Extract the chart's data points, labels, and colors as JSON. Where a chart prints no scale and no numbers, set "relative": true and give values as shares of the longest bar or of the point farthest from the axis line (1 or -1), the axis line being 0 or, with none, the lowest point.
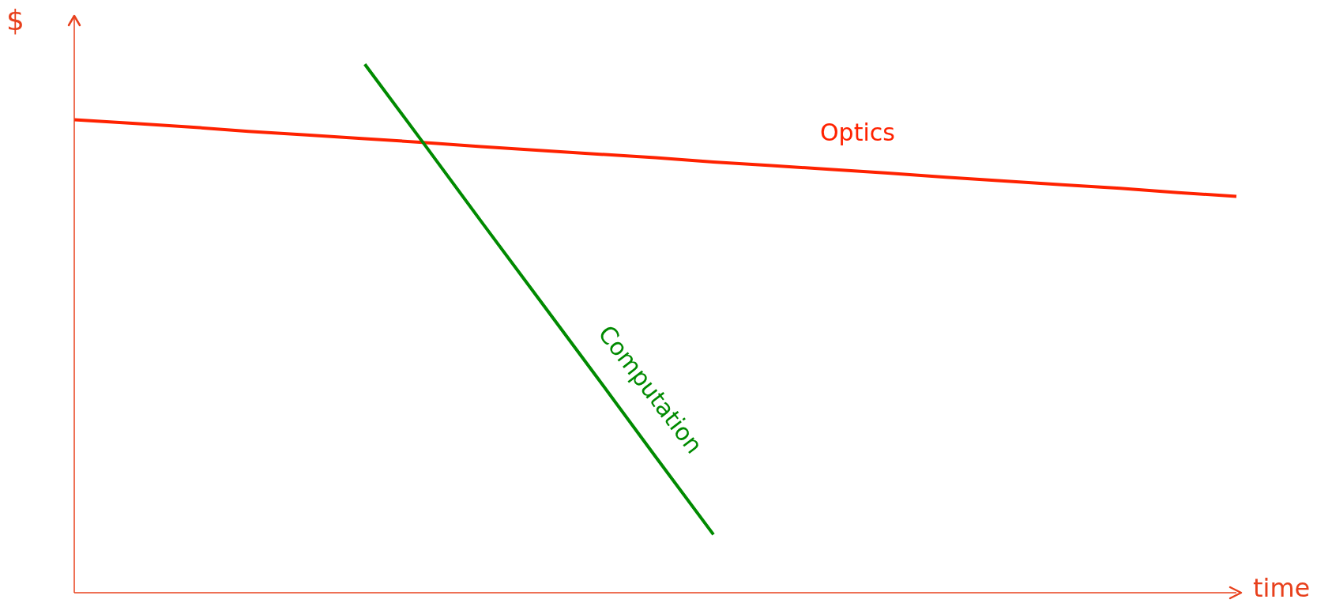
{
  "chart_data": {
    "type": "line",
    "relative": true,
    "xlabel": "time",
    "ylabel": "$",
    "marker": "none",
    "line_style": "solid",
    "categories": [
      null,
      null,
      null,
      null,
      null,
      null,
      null,
      null,
      null,
      null,
      null,
      null,
      null,
      null,
      null,
      null,
      null,
      null,
      null,
      null,
      null
    ],
    "series": [
      {
        "name": "Optics",
        "color": "#ff2200",
        "values": [
          0.895,
          0.888,
          0.881,
          0.873,
          0.866,
          0.859,
          0.852,
          0.844,
          0.837,
          0.83,
          0.823,
          0.815,
          0.808,
          0.801,
          0.794,
          0.786,
          0.779,
          0.772,
          0.765,
          0.757,
          0.75
        ]
      },
      {
        "name": "Computation",
        "color": "#008a00",
        "values": [
          null,
          null,
          null,
          null,
          null,
          1,
          0.852,
          0.703,
          0.555,
          0.407,
          0.258,
          0.11,
          null,
          null,
          null,
          null,
          null,
          null,
          null,
          null,
          null
        ]
      }
    ]
  }
}
